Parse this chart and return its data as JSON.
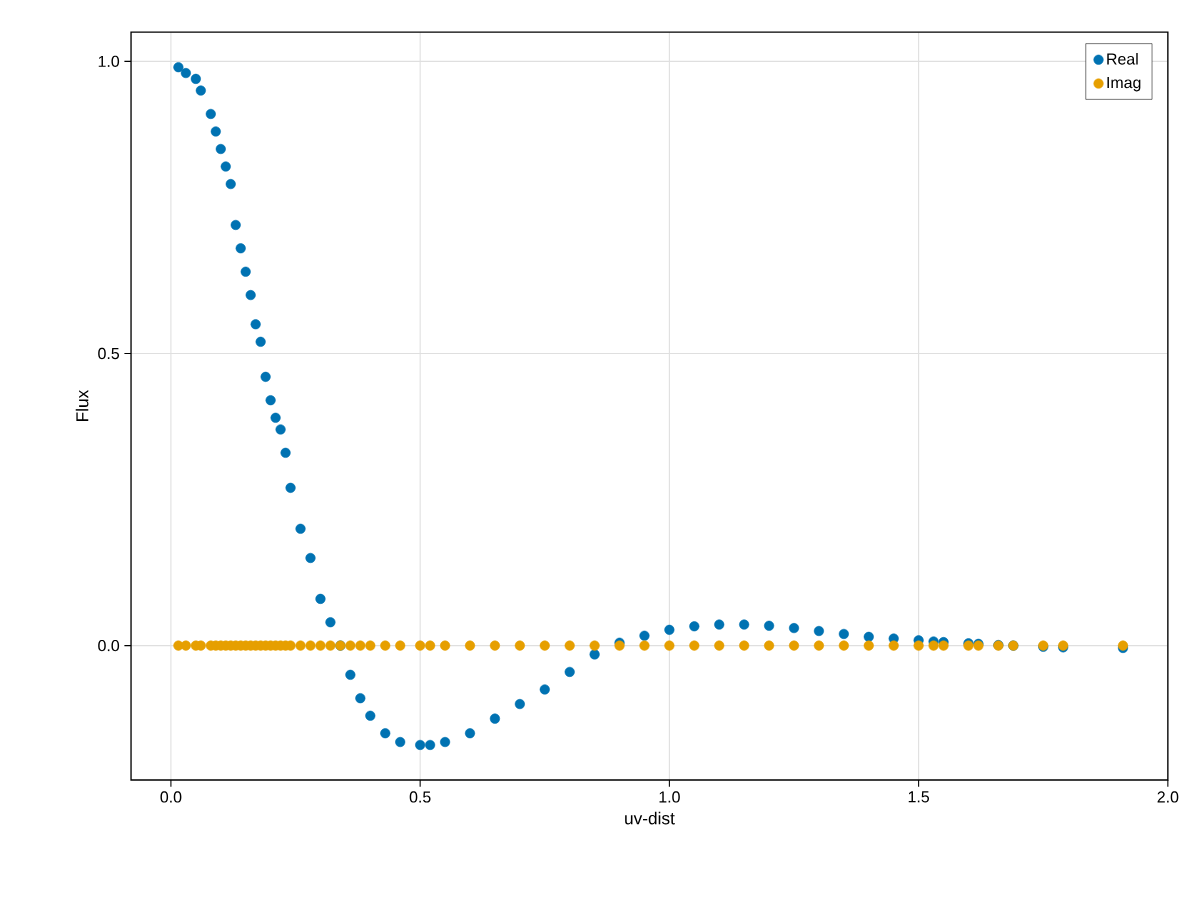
{
  "chart_data": {
    "type": "scatter",
    "xlabel": "uv-dist",
    "ylabel": "Flux",
    "xlim": [
      -0.08,
      2.0
    ],
    "ylim": [
      -0.23,
      1.05
    ],
    "xticks": [
      {
        "value": 0,
        "label": "0.0"
      },
      0.5,
      {
        "value": 1,
        "label": "1.0"
      },
      1.5,
      {
        "value": 2,
        "label": "2.0"
      }
    ],
    "yticks": [
      {
        "value": 0,
        "label": "0.0"
      },
      0.5,
      {
        "value": 1,
        "label": "1.0"
      }
    ],
    "grid": true,
    "legend": "top right",
    "marker": "circle",
    "x": [
      0.015,
      0.03,
      0.05,
      0.06,
      0.08,
      0.09,
      0.1,
      0.11,
      0.12,
      0.13,
      0.14,
      0.15,
      0.16,
      0.17,
      0.18,
      0.19,
      0.2,
      0.21,
      0.22,
      0.23,
      0.24,
      0.26,
      0.28,
      0.3,
      0.32,
      0.34,
      0.36,
      0.38,
      0.4,
      0.43,
      0.46,
      0.5,
      0.52,
      0.55,
      0.6,
      0.65,
      0.7,
      0.75,
      0.8,
      0.85,
      0.9,
      0.95,
      1.0,
      1.05,
      1.1,
      1.15,
      1.2,
      1.25,
      1.3,
      1.35,
      1.4,
      1.45,
      1.5,
      1.53,
      1.55,
      1.6,
      1.62,
      1.66,
      1.69,
      1.75,
      1.79,
      1.91
    ],
    "series": [
      {
        "name": "Real",
        "color": "#0072b2",
        "values": [
          0.99,
          0.98,
          0.97,
          0.95,
          0.91,
          0.88,
          0.85,
          0.82,
          0.79,
          0.72,
          0.68,
          0.64,
          0.6,
          0.55,
          0.52,
          0.46,
          0.42,
          0.39,
          0.37,
          0.33,
          0.27,
          0.2,
          0.15,
          0.08,
          0.04,
          0.0,
          -0.05,
          -0.09,
          -0.12,
          -0.15,
          -0.165,
          -0.17,
          -0.17,
          -0.165,
          -0.15,
          -0.125,
          -0.1,
          -0.075,
          -0.045,
          -0.015,
          0.005,
          0.017,
          0.027,
          0.033,
          0.036,
          0.036,
          0.034,
          0.03,
          0.025,
          0.02,
          0.015,
          0.012,
          0.009,
          0.007,
          0.006,
          0.004,
          0.003,
          0.001,
          0.0,
          -0.002,
          -0.003,
          -0.004
        ]
      },
      {
        "name": "Imag",
        "color": "#e69f00",
        "values": [
          0,
          0,
          0,
          0,
          0,
          0,
          0,
          0,
          0,
          0,
          0,
          0,
          0,
          0,
          0,
          0,
          0,
          0,
          0,
          0,
          0,
          0,
          0,
          0,
          0,
          0,
          0,
          0,
          0,
          0,
          0,
          0,
          0,
          0,
          0,
          0,
          0,
          0,
          0,
          0,
          0,
          0,
          0,
          0,
          0,
          0,
          0,
          0,
          0,
          0,
          0,
          0,
          0,
          0,
          0,
          0,
          0,
          0,
          0,
          0,
          0,
          0
        ]
      }
    ]
  }
}
